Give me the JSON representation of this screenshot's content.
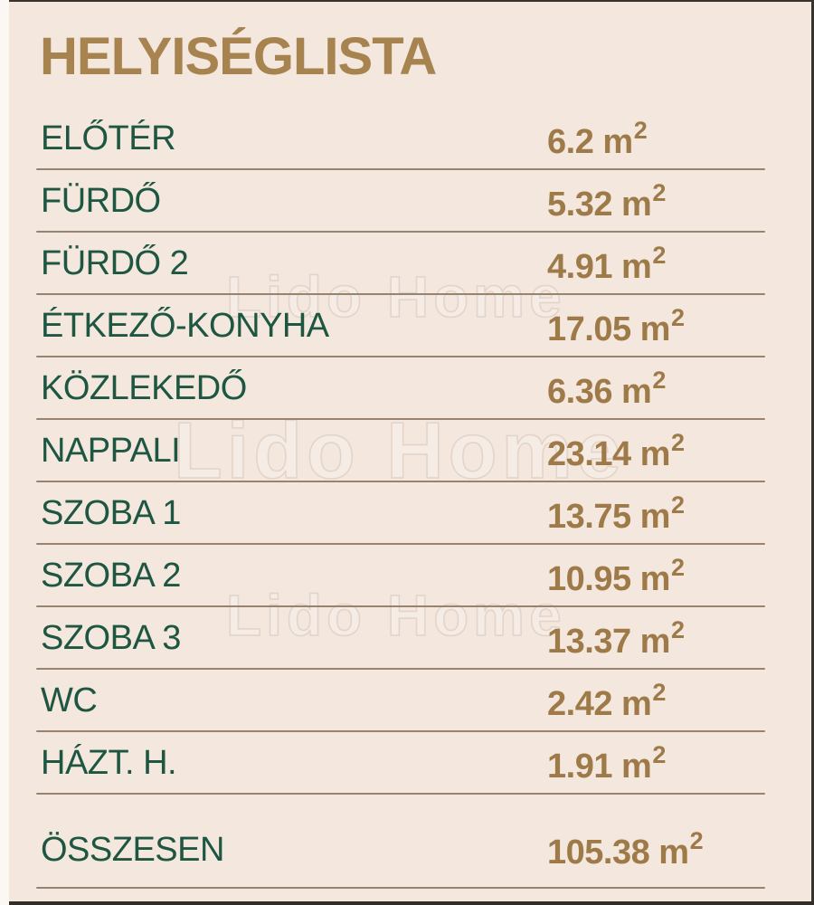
{
  "title": "HELYISÉGLISTA",
  "watermark": {
    "text": "Lido Home"
  },
  "unit": {
    "base": "m",
    "exponent": "2"
  },
  "rooms": [
    {
      "label": "ELŐTÉR",
      "area": "6.2"
    },
    {
      "label": "FÜRDŐ",
      "area": "5.32"
    },
    {
      "label": "FÜRDŐ 2",
      "area": "4.91"
    },
    {
      "label": "ÉTKEZŐ-KONYHA",
      "area": "17.05"
    },
    {
      "label": "KÖZLEKEDŐ",
      "area": "6.36"
    },
    {
      "label": "NAPPALI",
      "area": "23.14"
    },
    {
      "label": "SZOBA 1",
      "area": "13.75"
    },
    {
      "label": "SZOBA 2",
      "area": "10.95"
    },
    {
      "label": "SZOBA 3",
      "area": "13.37"
    },
    {
      "label": "WC",
      "area": "2.42"
    },
    {
      "label": "HÁZT. H.",
      "area": "1.91"
    }
  ],
  "total": {
    "label": "ÖSSZESEN",
    "area": "105.38"
  },
  "colors": {
    "background": "#f3e7de",
    "title_brown": "#a7834f",
    "value_brown": "#9e7a48",
    "label_green": "#1e5642",
    "separator_line": "#97836e",
    "watermark_outline": "#e3d2c6"
  }
}
